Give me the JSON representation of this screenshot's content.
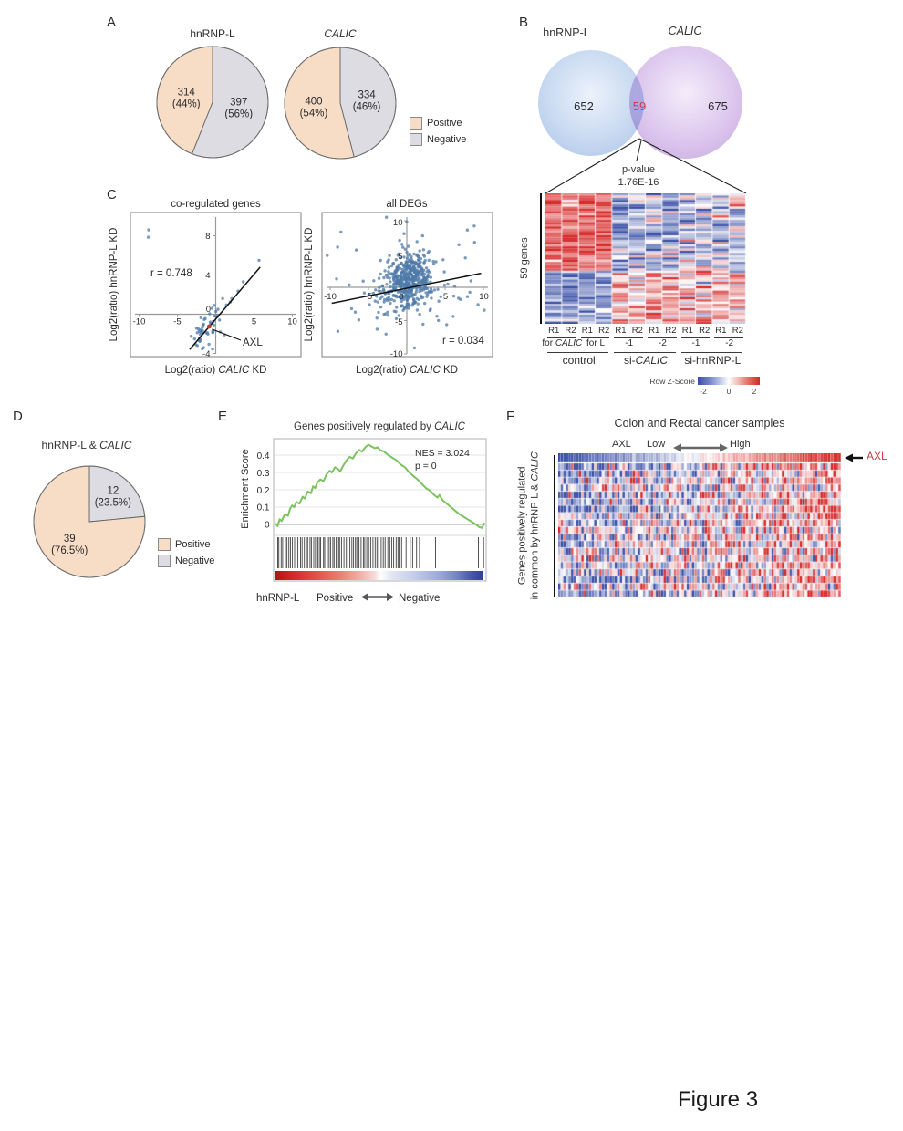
{
  "figure": {
    "label": "Figure 3"
  },
  "colors": {
    "positive": "#f7dcc6",
    "negative": "#dcdce2",
    "swatch_border": "#8a8a8a",
    "venn_left_fill": "#b9d0ec",
    "venn_right_fill": "#d8bfe8",
    "overlap_count_red": "#cb3a44",
    "scatter_point": "#4d79a8",
    "axl_red": "#c0392b",
    "gsea_green": "#7cc25e",
    "heat_red": "#d62626",
    "heat_blue": "#384ea6",
    "arrow_gray": "#5f5f5f"
  },
  "panel_a": {
    "label": "A",
    "legend": [
      {
        "label": "Positive",
        "color": "#f7dcc6"
      },
      {
        "label": "Negative",
        "color": "#dcdce2"
      }
    ]
  },
  "panel_b": {
    "label": "B",
    "venn_left_title": "hnRNP-L",
    "venn_right_title": "CALIC",
    "left_count": "652",
    "overlap_count": "59",
    "right_count": "675",
    "pvalue_label": "p-value",
    "pvalue_value": "1.76E-16",
    "row_axis_label": "59 genes",
    "replicate_labels": [
      "R1",
      "R2",
      "R1",
      "R2",
      "R1",
      "R2",
      "R1",
      "R2",
      "R1",
      "R2",
      "R1",
      "R2"
    ],
    "sub_labels": [
      [
        [
          "for ",
          0
        ],
        [
          "CALIC",
          1
        ]
      ],
      [
        [
          "for L",
          0
        ]
      ],
      [
        [
          "-1",
          0
        ]
      ],
      [
        [
          "-2",
          0
        ]
      ],
      [
        [
          "-1",
          0
        ]
      ],
      [
        [
          "-2",
          0
        ]
      ]
    ],
    "group_labels": [
      [
        [
          "control",
          0
        ]
      ],
      [
        [
          "si-",
          0
        ],
        [
          "CALIC",
          1
        ]
      ],
      [
        [
          "si-hnRNP-L",
          0
        ]
      ]
    ],
    "colorbar_label": "Row Z-Score",
    "colorbar_ticks": [
      "-2",
      "0",
      "2"
    ]
  },
  "panel_c": {
    "label": "C"
  },
  "panel_d": {
    "label": "D",
    "title_segments": [
      [
        "hnRNP-L & ",
        0
      ],
      [
        "CALIC",
        1
      ]
    ],
    "legend": [
      {
        "label": "Positive",
        "color": "#f7dcc6"
      },
      {
        "label": "Negative",
        "color": "#dcdce2"
      }
    ]
  },
  "panel_e": {
    "label": "E",
    "title_segments": [
      [
        "Genes positively regulated by ",
        0
      ],
      [
        "CALIC",
        1
      ]
    ],
    "y_axis_label": "Enrichment Score",
    "nes_text": "NES = 3.024",
    "p_text": "p = 0",
    "bottom_left": "hnRNP-L",
    "bottom_pos": "Positive",
    "bottom_neg": "Negative"
  },
  "panel_f": {
    "label": "F",
    "title": "Colon and Rectal cancer samples",
    "header_gene": "AXL",
    "header_low": "Low",
    "header_high": "High",
    "side_label_line1": "Genes positively regulated",
    "side_label_line2_segments": [
      [
        "in common by hnRNP-L & ",
        0
      ],
      [
        "CALIC",
        1
      ]
    ],
    "axl_annotation": "AXL"
  },
  "chart_data": [
    {
      "id": "pie_hnrnpl",
      "type": "pie",
      "title": "hnRNP-L",
      "slices": [
        {
          "name": "Negative",
          "value": 397,
          "pct": 56,
          "label_lines": [
            "397",
            "(56%)"
          ],
          "color": "#dcdce2",
          "label_r": 0.48
        },
        {
          "name": "Positive",
          "value": 314,
          "pct": 44,
          "label_lines": [
            "314",
            "(44%)"
          ],
          "color": "#f7dcc6",
          "label_r": 0.48
        }
      ]
    },
    {
      "id": "pie_calic",
      "type": "pie",
      "title": "CALIC",
      "slices": [
        {
          "name": "Negative",
          "value": 334,
          "pct": 46,
          "label_lines": [
            "334",
            "(46%)"
          ],
          "color": "#dcdce2",
          "label_r": 0.48
        },
        {
          "name": "Positive",
          "value": 400,
          "pct": 54,
          "label_lines": [
            "400",
            "(54%)"
          ],
          "color": "#f7dcc6",
          "label_r": 0.48
        }
      ]
    },
    {
      "id": "venn_b",
      "type": "venn",
      "sets": [
        "hnRNP-L",
        "CALIC"
      ],
      "left_only": 652,
      "overlap": 59,
      "right_only": 675,
      "p_value": "1.76E-16"
    },
    {
      "id": "heatmap_b",
      "type": "heatmap",
      "rows": 59,
      "cols": 12,
      "zlim": [
        -2,
        2
      ],
      "col_groups": [
        "control",
        "si-CALIC",
        "si-hnRNP-L"
      ],
      "pattern": {
        "up_rows": 35,
        "up_means": [
          1.35,
          -0.85,
          -0.5
        ],
        "down_means": [
          -1.1,
          0.7,
          0.45
        ],
        "up_sd": [
          0.5,
          0.8,
          0.85
        ],
        "down_sd": [
          0.6,
          0.75,
          0.8
        ],
        "seed": 7
      }
    },
    {
      "id": "scatter_coreg",
      "type": "scatter",
      "title": "co-regulated genes",
      "xlabel_segments": [
        [
          "Log2(ratio)  ",
          0
        ],
        [
          "CALIC",
          1
        ],
        [
          " KD",
          0
        ]
      ],
      "ylabel": "Log2(ratio)  hnRNP-L KD",
      "r_label": "r = 0.748",
      "xlim": [
        -11,
        11
      ],
      "ylim": [
        -4.6,
        10.3
      ],
      "x_ticks": [
        -10,
        -5,
        5,
        10
      ],
      "y_ticks": [
        8,
        4,
        -4
      ],
      "origin_label": "0",
      "regression": [
        [
          -3.4,
          -3.6
        ],
        [
          5.8,
          4.8
        ]
      ],
      "points": [
        [
          -8.75,
          8.6
        ],
        [
          -8.8,
          7.85
        ],
        [
          5.65,
          5.5
        ],
        [
          3.6,
          3.3
        ],
        [
          2.9,
          2.35
        ],
        [
          2.1,
          1.6
        ],
        [
          1.4,
          0.95
        ],
        [
          0.9,
          1.6
        ],
        [
          1.9,
          1.25
        ],
        [
          -2.6,
          -3.1
        ],
        [
          -1.6,
          -3.4
        ],
        [
          -0.4,
          -3.55
        ],
        [
          -3.2,
          -2.25
        ],
        [
          0.6,
          -1.8
        ],
        [
          1.15,
          -2.1
        ],
        [
          0.3,
          0.5
        ],
        [
          -0.2,
          0.9
        ],
        [
          0.5,
          -0.6
        ]
      ],
      "cluster": {
        "n": 40,
        "cx": -1.15,
        "cy": -1.35,
        "sx": 0.85,
        "sy": 0.85,
        "corr": 0.55,
        "seed": 11
      },
      "axl_point": {
        "x": -0.85,
        "y": -1.25,
        "label": "AXL"
      }
    },
    {
      "id": "scatter_all",
      "type": "scatter",
      "title": "all DEGs",
      "xlabel_segments": [
        [
          "Log2(ratio)  ",
          0
        ],
        [
          "CALIC",
          1
        ],
        [
          " KD",
          0
        ]
      ],
      "ylabel": "Log2(ratio)  hnRNP-L KD",
      "r_label": "r = 0.034",
      "xlim": [
        -10.5,
        10.5
      ],
      "ylim": [
        -10.8,
        10.8
      ],
      "x_ticks": [
        -10,
        -5,
        5,
        10
      ],
      "y_ticks": [
        10,
        5,
        -5,
        -10
      ],
      "origin_label": "0",
      "regression": [
        [
          -9.8,
          -2.4
        ],
        [
          9.7,
          2.1
        ]
      ],
      "points": [
        [
          -8.6,
          8.3
        ],
        [
          8.8,
          9.2
        ],
        [
          7.9,
          8.6
        ],
        [
          -9.0,
          -6.6
        ],
        [
          1.0,
          -9.1
        ],
        [
          5.2,
          -5.6
        ],
        [
          -6.6,
          5.6
        ],
        [
          9.3,
          -2.6
        ],
        [
          -7.2,
          -3.2
        ],
        [
          6.8,
          6.4
        ]
      ],
      "cluster": {
        "n": 430,
        "cx": 0.1,
        "cy": 0.9,
        "sx": 1.5,
        "sy": 2.0,
        "corr": 0.15,
        "seed": 23
      },
      "cluster2": {
        "n": 110,
        "cx": 0.3,
        "cy": 0.1,
        "sx": 4.2,
        "sy": 3.6,
        "corr": 0.1,
        "seed": 37
      }
    },
    {
      "id": "pie_common",
      "type": "pie",
      "title": "hnRNP-L & CALIC",
      "slices": [
        {
          "name": "Negative",
          "value": 12,
          "pct": 23.5,
          "label_lines": [
            "12",
            "(23.5%)"
          ],
          "color": "#dcdce2",
          "label_r": 0.63
        },
        {
          "name": "Positive",
          "value": 39,
          "pct": 76.5,
          "label_lines": [
            "39",
            "(76.5%)"
          ],
          "color": "#f7dcc6",
          "label_r": 0.53
        }
      ]
    },
    {
      "id": "gsea",
      "type": "line",
      "title": "Genes positively regulated by CALIC",
      "ylabel": "Enrichment Score",
      "y_ticks": [
        "0.4",
        "0.3",
        "0.2",
        "0.1",
        "0"
      ],
      "ylim": [
        -0.05,
        0.5
      ],
      "nes": 3.024,
      "p": 0,
      "curve": [
        [
          0,
          0.005
        ],
        [
          0.01,
          -0.01
        ],
        [
          0.02,
          0.03
        ],
        [
          0.03,
          0.02
        ],
        [
          0.045,
          0.06
        ],
        [
          0.06,
          0.05
        ],
        [
          0.07,
          0.09
        ],
        [
          0.08,
          0.11
        ],
        [
          0.09,
          0.1
        ],
        [
          0.1,
          0.13
        ],
        [
          0.115,
          0.12
        ],
        [
          0.13,
          0.16
        ],
        [
          0.14,
          0.15
        ],
        [
          0.155,
          0.19
        ],
        [
          0.17,
          0.18
        ],
        [
          0.18,
          0.22
        ],
        [
          0.19,
          0.21
        ],
        [
          0.2,
          0.24
        ],
        [
          0.215,
          0.26
        ],
        [
          0.23,
          0.25
        ],
        [
          0.245,
          0.29
        ],
        [
          0.26,
          0.31
        ],
        [
          0.27,
          0.3
        ],
        [
          0.285,
          0.33
        ],
        [
          0.3,
          0.32
        ],
        [
          0.31,
          0.305
        ],
        [
          0.325,
          0.34
        ],
        [
          0.34,
          0.37
        ],
        [
          0.355,
          0.39
        ],
        [
          0.37,
          0.38
        ],
        [
          0.385,
          0.41
        ],
        [
          0.4,
          0.43
        ],
        [
          0.415,
          0.42
        ],
        [
          0.43,
          0.445
        ],
        [
          0.445,
          0.46
        ],
        [
          0.46,
          0.45
        ],
        [
          0.475,
          0.44
        ],
        [
          0.49,
          0.445
        ],
        [
          0.5,
          0.43
        ],
        [
          0.52,
          0.42
        ],
        [
          0.54,
          0.4
        ],
        [
          0.56,
          0.385
        ],
        [
          0.58,
          0.37
        ],
        [
          0.6,
          0.345
        ],
        [
          0.62,
          0.33
        ],
        [
          0.64,
          0.3
        ],
        [
          0.66,
          0.28
        ],
        [
          0.68,
          0.26
        ],
        [
          0.7,
          0.235
        ],
        [
          0.72,
          0.21
        ],
        [
          0.74,
          0.195
        ],
        [
          0.76,
          0.17
        ],
        [
          0.775,
          0.155
        ],
        [
          0.785,
          0.17
        ],
        [
          0.8,
          0.14
        ],
        [
          0.82,
          0.12
        ],
        [
          0.84,
          0.1
        ],
        [
          0.86,
          0.08
        ],
        [
          0.88,
          0.06
        ],
        [
          0.9,
          0.045
        ],
        [
          0.92,
          0.03
        ],
        [
          0.94,
          0.015
        ],
        [
          0.96,
          0
        ],
        [
          0.975,
          -0.015
        ],
        [
          0.99,
          -0.02
        ],
        [
          1,
          0.01
        ]
      ],
      "barcode_segments": [
        {
          "n": 50,
          "from": 0.005,
          "to": 0.46
        },
        {
          "n": 14,
          "from": 0.46,
          "to": 0.6
        },
        {
          "n": 6,
          "from": 0.6,
          "to": 0.7
        },
        {
          "n": 1,
          "from": 0.765,
          "to": 0.768
        },
        {
          "n": 1,
          "from": 0.97,
          "to": 0.973
        },
        {
          "n": 1,
          "from": 0.995,
          "to": 0.998
        }
      ],
      "barcode_seed": 3,
      "gradient_stops": [
        [
          "#b21218",
          0
        ],
        [
          "#cc2a24",
          8
        ],
        [
          "#e05247",
          20
        ],
        [
          "#ea8276",
          32
        ],
        [
          "#f2b4ac",
          42
        ],
        [
          "#f7d9d6",
          48
        ],
        [
          "#ffffff",
          51
        ],
        [
          "#e4e7f3",
          56
        ],
        [
          "#cdd4ec",
          64
        ],
        [
          "#b4bee3",
          72
        ],
        [
          "#9aa6d8",
          80
        ],
        [
          "#7282c4",
          88
        ],
        [
          "#4a5aad",
          94
        ],
        [
          "#323f9e",
          100
        ]
      ]
    },
    {
      "id": "heatmap_f",
      "type": "heatmap",
      "rows": 20,
      "cols": 110,
      "zlim": [
        -2,
        2
      ],
      "seed": 5,
      "first_row_gene": "AXL",
      "first_row": "gradient_blue_to_red",
      "row_bias_range": [
        0.25,
        0.8
      ],
      "noise_sd": 0.75
    }
  ]
}
